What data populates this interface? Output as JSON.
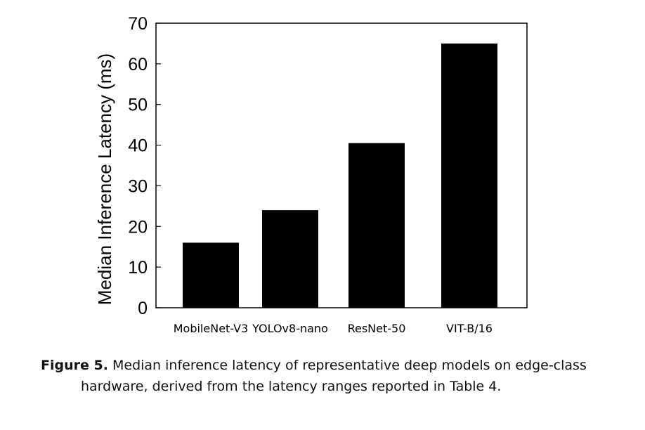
{
  "chart_data": {
    "type": "bar",
    "categories": [
      "MobileNet-V3",
      "YOLOv8-nano",
      "ResNet-50",
      "VIT-B/16"
    ],
    "values": [
      16,
      24,
      40.5,
      65
    ],
    "xlabel": "",
    "ylabel": "Median Inference Latency (ms)",
    "ylim": [
      0,
      70
    ],
    "yticks": [
      0,
      10,
      20,
      30,
      40,
      50,
      60,
      70
    ],
    "grid": false,
    "bar_color": "#000000"
  },
  "caption": {
    "label": "Figure 5.",
    "text_line1": "Median inference latency of representative deep models on edge-class",
    "text_line2": "hardware, derived from the latency ranges reported in Table 4."
  }
}
